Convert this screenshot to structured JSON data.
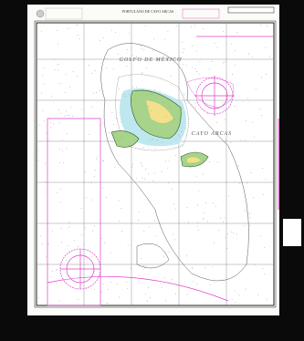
{
  "header": {
    "title": "PORTULANO DE CAYO ARCAS"
  },
  "labels": {
    "sea": "GOLFO DE MÉXICO",
    "cay": "CAYO ARCAS"
  }
}
